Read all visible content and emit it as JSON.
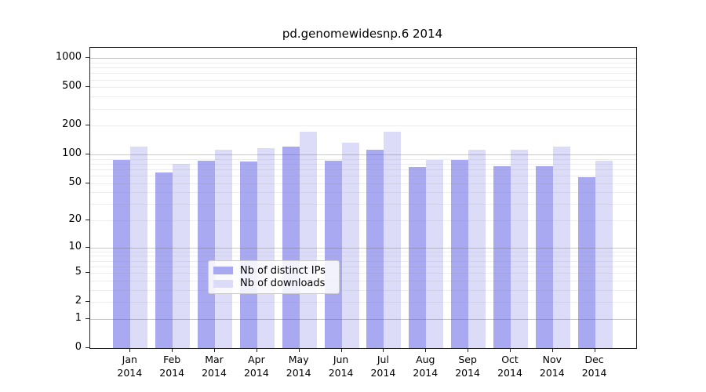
{
  "chart_data": {
    "type": "bar",
    "title": "pd.genomewidesnp.6 2014",
    "scale": "log1p",
    "categories": [
      "Jan",
      "Feb",
      "Mar",
      "Apr",
      "May",
      "Jun",
      "Jul",
      "Aug",
      "Sep",
      "Oct",
      "Nov",
      "Dec"
    ],
    "year_label": "2014",
    "series": [
      {
        "name": "Nb of distinct IPs",
        "color": "#a9a9f2",
        "values": [
          88,
          65,
          87,
          84,
          122,
          86,
          113,
          74,
          88,
          75,
          76,
          58
        ]
      },
      {
        "name": "Nb of downloads",
        "color": "#dcdcf8",
        "values": [
          120,
          80,
          113,
          117,
          173,
          134,
          173,
          88,
          113,
          112,
          122,
          86
        ]
      }
    ],
    "yticks": [
      0,
      1,
      2,
      5,
      10,
      20,
      50,
      100,
      200,
      500,
      1000
    ],
    "minor_grid_values": [
      1,
      2,
      3,
      4,
      5,
      6,
      7,
      8,
      9,
      10,
      20,
      30,
      40,
      50,
      60,
      70,
      80,
      90,
      100,
      200,
      300,
      400,
      500,
      600,
      700,
      800,
      900,
      1000
    ],
    "major_grid_values": [
      1,
      10,
      100,
      1000
    ],
    "ylim": [
      0,
      1290
    ],
    "grid": true,
    "legend_position": "lower center",
    "colors": {
      "bar_dark": "#a9a9f2",
      "bar_light": "#dcdcf8",
      "grid_minor": "#ececec",
      "grid_major": "#c8c8c8",
      "axis": "#222222",
      "background": "#ffffff"
    }
  }
}
